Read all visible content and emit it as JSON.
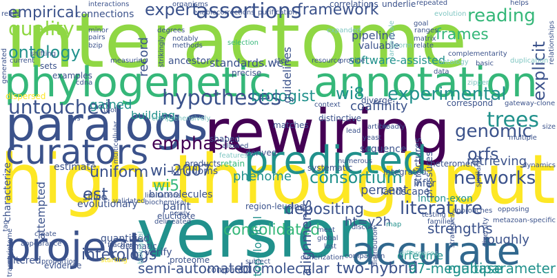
{
  "palette": {
    "purple": "#440154",
    "indigo": "#3b528b",
    "blue": "#31688e",
    "teal": "#21918c",
    "green": "#35b779",
    "lime": "#8fd744",
    "yellow": "#fde725",
    "lightteal": "#7fc6c2"
  },
  "words": [
    "interactome",
    "phylogenetic",
    "annotation",
    "rewiring",
    "paralogs",
    "high-throughput",
    "version",
    "accurate",
    "project",
    "predicted",
    "curators",
    "assertions",
    "expert",
    "reading",
    "empirical",
    "framework",
    "frames",
    "quality",
    "ontology",
    "explicit",
    "hypotheses",
    "biologist",
    "wi8",
    "experimental",
    "untouched",
    "trees",
    "genomic",
    "emphasis",
    "networks",
    "consortium",
    "orfs",
    "literature",
    "consolidated",
    "wi-2007",
    "wi5",
    "uniform",
    "est",
    "interologs",
    "semi-automated",
    "biomolecular",
    "two-hybrid",
    "97-megabase",
    "multiparameter",
    "alignments",
    "ht=y2h",
    "strengths",
    "depositing",
    "phenome",
    "pipeline",
    "valuable",
    "software-assisted",
    "standards.we",
    "ancestor",
    "record",
    "guidelines",
    "building",
    "gained",
    "dispersed",
    "examples",
    "sets",
    "connections",
    "interactions",
    "coaffinity",
    "percent",
    "retrieving",
    "infer",
    "landscape",
    "intron-exon",
    "orfeome",
    "roughly",
    "verify",
    "proteome",
    "quantified",
    "attempted",
    "evolutionary",
    "silico",
    "estimate",
    "characterize",
    "kingdoms",
    "biomolecules",
    "paint",
    "topological",
    "filtered",
    "evidence",
    "compare",
    "dramatic",
    "elucidate",
    "region-leucine",
    "structures",
    "pressures",
    "sequence",
    "yeast",
    "heteromeric",
    "shaped",
    "retain",
    "products",
    "derived",
    "systematic",
    "integrated",
    "allowed",
    "matches",
    "distinctive",
    "diverge",
    "correspond",
    "article",
    "precise",
    "step",
    "resource",
    "provide",
    "ranges",
    "relate",
    "matrix",
    "complementarity",
    "correlations",
    "underlie",
    "repeated",
    "helps",
    "enable",
    "corrections",
    "purification",
    "organisms",
    "degrees",
    "minor",
    "pairs",
    "bzip",
    "notably",
    "methods",
    "strikingly",
    "selection",
    "measuring",
    "current",
    "shifting",
    "generated",
    "relies",
    "tfs",
    "cdna",
    "tool",
    "multicellular",
    "validated",
    "limitations",
    "biochemical",
    "newly",
    "create",
    "tag",
    "appearance",
    "transcriptome",
    "proportion",
    "fraction",
    "starting",
    "subject",
    "comparison",
    "global",
    "testing",
    "families",
    "approaches",
    "strategies",
    "diversity",
    "opposing",
    "metazoan-specific",
    "similarity",
    "gateway-clone",
    "multiple",
    "dynamics",
    "size",
    "differences",
    "zipper",
    "duplication",
    "ontology",
    "basic",
    "data",
    "goal",
    "expanded",
    "large-scale",
    "relationships",
    "evolution",
    "worm",
    "numerous",
    "broadly",
    "discuss",
    "lost",
    "meet",
    "distribution",
    "delineated",
    "biological",
    "lead",
    "context",
    "comprehensively",
    "map",
    "features",
    "dimerization",
    "supported",
    "unique",
    "protein-protein",
    "binary"
  ]
}
